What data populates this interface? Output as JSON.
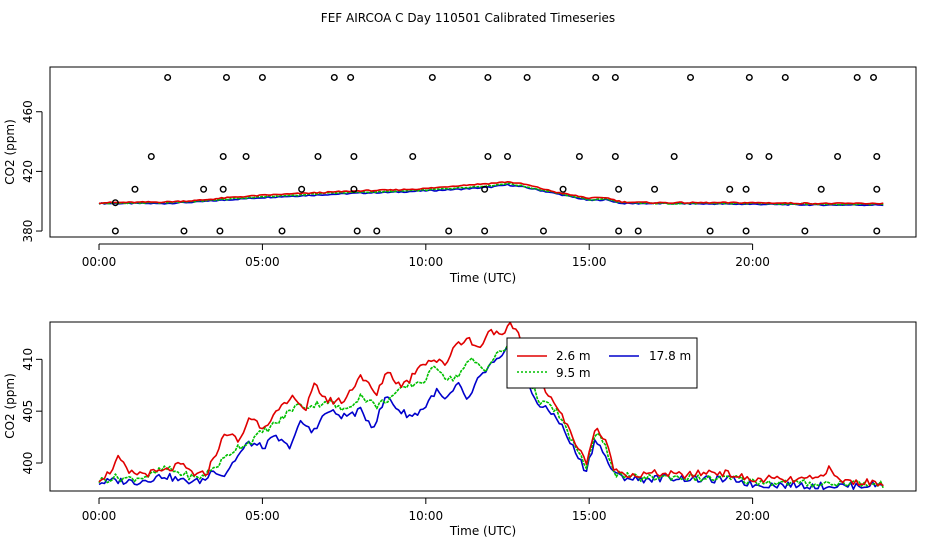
{
  "figure": {
    "title": "FEF AIRCOA C  Day 110501  Calibrated Timeseries"
  },
  "colors": {
    "axis": "#000000",
    "series_2_6": "#e00000",
    "series_9_5": "#00c000",
    "series_17_8": "#0000cc",
    "markers": "#000000"
  },
  "chart_data": [
    {
      "type": "line",
      "panel": "top",
      "xlabel": "Time (UTC)",
      "ylabel": "CO2 (ppm)",
      "xlim": [
        -1.5,
        25
      ],
      "ylim": [
        376,
        490
      ],
      "x_ticks": [
        0,
        5,
        10,
        15,
        20
      ],
      "x_tick_labels": [
        "00:00",
        "05:00",
        "10:00",
        "15:00",
        "20:00"
      ],
      "y_ticks": [
        380,
        420,
        460
      ],
      "y_tick_labels": [
        "380",
        "420",
        "460"
      ],
      "series_keyframes": {
        "2.6 m": [
          [
            0,
            399
          ],
          [
            2,
            399.5
          ],
          [
            3,
            400.5
          ],
          [
            4,
            402.5
          ],
          [
            5,
            404
          ],
          [
            6,
            405
          ],
          [
            7,
            406
          ],
          [
            8,
            407
          ],
          [
            9,
            407.5
          ],
          [
            10,
            408.5
          ],
          [
            11,
            410.5
          ],
          [
            12,
            412
          ],
          [
            12.5,
            413
          ],
          [
            13,
            411.5
          ],
          [
            14,
            406
          ],
          [
            15,
            402
          ],
          [
            15.5,
            402.5
          ],
          [
            16,
            399.5
          ],
          [
            17,
            399
          ],
          [
            20,
            399
          ],
          [
            22,
            398.5
          ],
          [
            24,
            398.5
          ]
        ],
        "9.5 m": [
          [
            0,
            398.5
          ],
          [
            2,
            399
          ],
          [
            3,
            400
          ],
          [
            4,
            401.5
          ],
          [
            5,
            403
          ],
          [
            6,
            404
          ],
          [
            7,
            405.5
          ],
          [
            8,
            406
          ],
          [
            9,
            406.5
          ],
          [
            10,
            407.5
          ],
          [
            11,
            409
          ],
          [
            12,
            410.5
          ],
          [
            12.5,
            412
          ],
          [
            13,
            410
          ],
          [
            14,
            405.5
          ],
          [
            15,
            401
          ],
          [
            15.5,
            401.5
          ],
          [
            16,
            399
          ],
          [
            17,
            398.5
          ],
          [
            20,
            398.5
          ],
          [
            22,
            398
          ],
          [
            24,
            398
          ]
        ],
        "17.8 m": [
          [
            0,
            398.5
          ],
          [
            2,
            398.5
          ],
          [
            3,
            399.5
          ],
          [
            4,
            401
          ],
          [
            5,
            402.5
          ],
          [
            6,
            403.5
          ],
          [
            7,
            404.5
          ],
          [
            8,
            405.5
          ],
          [
            9,
            406
          ],
          [
            10,
            407
          ],
          [
            11,
            408
          ],
          [
            12,
            409.5
          ],
          [
            12.5,
            411
          ],
          [
            13,
            409.5
          ],
          [
            14,
            405
          ],
          [
            15,
            400.5
          ],
          [
            15.5,
            401
          ],
          [
            16,
            398.5
          ],
          [
            17,
            398.5
          ],
          [
            20,
            398
          ],
          [
            22,
            397.5
          ],
          [
            24,
            397.5
          ]
        ]
      },
      "flag_markers": [
        {
          "x": 0.5,
          "y": 380
        },
        {
          "x": 0.5,
          "y": 399
        },
        {
          "x": 1.1,
          "y": 408
        },
        {
          "x": 1.6,
          "y": 430
        },
        {
          "x": 2.1,
          "y": 483
        },
        {
          "x": 2.6,
          "y": 380
        },
        {
          "x": 3.2,
          "y": 408
        },
        {
          "x": 3.7,
          "y": 380
        },
        {
          "x": 3.8,
          "y": 408
        },
        {
          "x": 3.8,
          "y": 430
        },
        {
          "x": 3.9,
          "y": 483
        },
        {
          "x": 4.5,
          "y": 430
        },
        {
          "x": 5.0,
          "y": 483
        },
        {
          "x": 5.6,
          "y": 380
        },
        {
          "x": 6.2,
          "y": 408
        },
        {
          "x": 6.7,
          "y": 430
        },
        {
          "x": 7.2,
          "y": 483
        },
        {
          "x": 7.7,
          "y": 483
        },
        {
          "x": 7.8,
          "y": 408
        },
        {
          "x": 7.8,
          "y": 430
        },
        {
          "x": 7.9,
          "y": 380
        },
        {
          "x": 8.5,
          "y": 380
        },
        {
          "x": 9.6,
          "y": 430
        },
        {
          "x": 10.2,
          "y": 483
        },
        {
          "x": 10.7,
          "y": 380
        },
        {
          "x": 11.8,
          "y": 380
        },
        {
          "x": 11.8,
          "y": 408
        },
        {
          "x": 11.9,
          "y": 430
        },
        {
          "x": 11.9,
          "y": 483
        },
        {
          "x": 12.5,
          "y": 430
        },
        {
          "x": 13.1,
          "y": 483
        },
        {
          "x": 13.6,
          "y": 380
        },
        {
          "x": 14.2,
          "y": 408
        },
        {
          "x": 14.7,
          "y": 430
        },
        {
          "x": 15.2,
          "y": 483
        },
        {
          "x": 15.8,
          "y": 483
        },
        {
          "x": 15.8,
          "y": 430
        },
        {
          "x": 15.9,
          "y": 408
        },
        {
          "x": 15.9,
          "y": 380
        },
        {
          "x": 16.5,
          "y": 380
        },
        {
          "x": 17.0,
          "y": 408
        },
        {
          "x": 17.6,
          "y": 430
        },
        {
          "x": 18.1,
          "y": 483
        },
        {
          "x": 18.7,
          "y": 380
        },
        {
          "x": 19.3,
          "y": 408
        },
        {
          "x": 19.8,
          "y": 380
        },
        {
          "x": 19.8,
          "y": 408
        },
        {
          "x": 19.9,
          "y": 430
        },
        {
          "x": 19.9,
          "y": 483
        },
        {
          "x": 20.5,
          "y": 430
        },
        {
          "x": 21.0,
          "y": 483
        },
        {
          "x": 21.6,
          "y": 380
        },
        {
          "x": 22.1,
          "y": 408
        },
        {
          "x": 22.6,
          "y": 430
        },
        {
          "x": 23.2,
          "y": 483
        },
        {
          "x": 23.7,
          "y": 483
        },
        {
          "x": 23.8,
          "y": 430
        },
        {
          "x": 23.8,
          "y": 408
        },
        {
          "x": 23.8,
          "y": 380
        }
      ]
    },
    {
      "type": "line",
      "panel": "bottom",
      "xlabel": "Time (UTC)",
      "ylabel": "CO2 (ppm)",
      "xlim": [
        -1.5,
        25
      ],
      "ylim": [
        397.3,
        413.6
      ],
      "x_ticks": [
        0,
        5,
        10,
        15,
        20
      ],
      "x_tick_labels": [
        "00:00",
        "05:00",
        "10:00",
        "15:00",
        "20:00"
      ],
      "y_ticks": [
        400,
        405,
        410
      ],
      "y_tick_labels": [
        "400",
        "405",
        "410"
      ],
      "legend": {
        "position": "top-center",
        "entries": [
          {
            "label": "2.6 m",
            "series": "2.6 m"
          },
          {
            "label": "9.5 m",
            "series": "9.5 m"
          },
          {
            "label": "17.8 m",
            "series": "17.8 m"
          }
        ]
      },
      "series_keyframes": {
        "2.6 m": [
          [
            0,
            398.5
          ],
          [
            0.3,
            399
          ],
          [
            0.6,
            400.5
          ],
          [
            0.9,
            399
          ],
          [
            1.5,
            399
          ],
          [
            2,
            399.2
          ],
          [
            2.5,
            399.8
          ],
          [
            3,
            398.8
          ],
          [
            3.3,
            399
          ],
          [
            3.5,
            400.5
          ],
          [
            3.9,
            403
          ],
          [
            4.3,
            402
          ],
          [
            4.6,
            404.5
          ],
          [
            5,
            403.5
          ],
          [
            5.5,
            405
          ],
          [
            6,
            406.5
          ],
          [
            6.3,
            405
          ],
          [
            6.6,
            407.5
          ],
          [
            7,
            406
          ],
          [
            7.5,
            406
          ],
          [
            8,
            408.5
          ],
          [
            8.5,
            406.5
          ],
          [
            8.8,
            409
          ],
          [
            9.2,
            407.5
          ],
          [
            9.5,
            408
          ],
          [
            9.8,
            409.5
          ],
          [
            10.2,
            410
          ],
          [
            10.6,
            409.5
          ],
          [
            10.9,
            411.5
          ],
          [
            11.3,
            412
          ],
          [
            11.6,
            411
          ],
          [
            12,
            413
          ],
          [
            12.3,
            412
          ],
          [
            12.6,
            413.3
          ],
          [
            12.8,
            412.8
          ],
          [
            13,
            411
          ],
          [
            13.3,
            408.5
          ],
          [
            13.6,
            407.5
          ],
          [
            14,
            405.5
          ],
          [
            14.5,
            402.5
          ],
          [
            14.9,
            400
          ],
          [
            15.2,
            403.5
          ],
          [
            15.5,
            402
          ],
          [
            15.8,
            399.2
          ],
          [
            16.5,
            398.8
          ],
          [
            17,
            399
          ],
          [
            18,
            398.8
          ],
          [
            18.8,
            399.2
          ],
          [
            19.5,
            398.8
          ],
          [
            20,
            398.3
          ],
          [
            20.5,
            398.5
          ],
          [
            21,
            398.3
          ],
          [
            22,
            398.5
          ],
          [
            22.3,
            399.5
          ],
          [
            22.6,
            398.4
          ],
          [
            23,
            398.2
          ],
          [
            23.8,
            398.1
          ]
        ],
        "9.5 m": [
          [
            0,
            398.3
          ],
          [
            0.5,
            398.6
          ],
          [
            1,
            398.5
          ],
          [
            1.6,
            398.8
          ],
          [
            2,
            399.5
          ],
          [
            2.5,
            399
          ],
          [
            3,
            398.5
          ],
          [
            3.3,
            399
          ],
          [
            3.7,
            400
          ],
          [
            4.2,
            401.5
          ],
          [
            4.6,
            402
          ],
          [
            5,
            403
          ],
          [
            5.5,
            404
          ],
          [
            6,
            405.5
          ],
          [
            6.5,
            405.5
          ],
          [
            7,
            406
          ],
          [
            7.5,
            405
          ],
          [
            8,
            406.5
          ],
          [
            8.5,
            405.5
          ],
          [
            9,
            406.5
          ],
          [
            9.5,
            407.5
          ],
          [
            10,
            408
          ],
          [
            10.3,
            409.5
          ],
          [
            10.7,
            408
          ],
          [
            11,
            408.5
          ],
          [
            11.4,
            410
          ],
          [
            11.8,
            409
          ],
          [
            12.2,
            410.5
          ],
          [
            12.6,
            411.5
          ],
          [
            12.9,
            410
          ],
          [
            13.2,
            407.5
          ],
          [
            13.5,
            406
          ],
          [
            14,
            405
          ],
          [
            14.5,
            402
          ],
          [
            14.9,
            399.5
          ],
          [
            15.2,
            403
          ],
          [
            15.5,
            401.5
          ],
          [
            15.8,
            399
          ],
          [
            16.5,
            398.5
          ],
          [
            17.5,
            398.7
          ],
          [
            18.5,
            398.5
          ],
          [
            19.5,
            398.5
          ],
          [
            20,
            398.2
          ],
          [
            21,
            398.1
          ],
          [
            22,
            398
          ],
          [
            23,
            398.1
          ],
          [
            23.8,
            397.9
          ]
        ],
        "17.8 m": [
          [
            0,
            398.1
          ],
          [
            0.5,
            398.3
          ],
          [
            1.2,
            398.2
          ],
          [
            2,
            398.8
          ],
          [
            2.5,
            398.3
          ],
          [
            3,
            398.2
          ],
          [
            3.3,
            398.5
          ],
          [
            3.5,
            399.5
          ],
          [
            3.8,
            398.7
          ],
          [
            4.2,
            400.5
          ],
          [
            4.6,
            402
          ],
          [
            5,
            401.5
          ],
          [
            5.4,
            402.5
          ],
          [
            5.8,
            401.5
          ],
          [
            6.2,
            404
          ],
          [
            6.5,
            403
          ],
          [
            7,
            405
          ],
          [
            7.5,
            404.5
          ],
          [
            8,
            405
          ],
          [
            8.4,
            403.5
          ],
          [
            8.8,
            406.5
          ],
          [
            9.2,
            405
          ],
          [
            9.6,
            404.5
          ],
          [
            10,
            405.5
          ],
          [
            10.3,
            407
          ],
          [
            10.6,
            406
          ],
          [
            11,
            407.5
          ],
          [
            11.3,
            406
          ],
          [
            11.6,
            408
          ],
          [
            12,
            409.5
          ],
          [
            12.3,
            410
          ],
          [
            12.6,
            411.5
          ],
          [
            12.9,
            409
          ],
          [
            13.2,
            407
          ],
          [
            13.5,
            405.5
          ],
          [
            14,
            404.5
          ],
          [
            14.5,
            401.5
          ],
          [
            14.9,
            399.2
          ],
          [
            15.2,
            402.5
          ],
          [
            15.5,
            400.5
          ],
          [
            15.8,
            398.8
          ],
          [
            16.5,
            398.4
          ],
          [
            17.5,
            398.6
          ],
          [
            18.5,
            398.4
          ],
          [
            19.5,
            398.4
          ],
          [
            20,
            397.9
          ],
          [
            21,
            397.9
          ],
          [
            22,
            397.8
          ],
          [
            23,
            397.8
          ],
          [
            23.8,
            397.9
          ]
        ]
      }
    }
  ]
}
